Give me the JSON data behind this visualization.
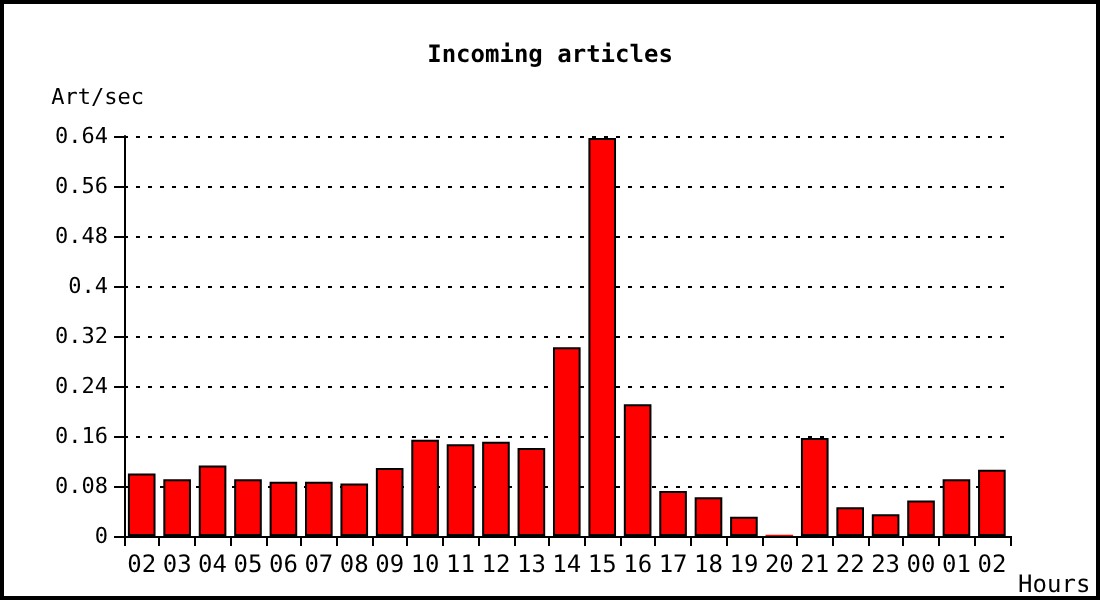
{
  "chart_data": {
    "type": "bar",
    "title": "Incoming articles",
    "ylabel": "Art/sec",
    "xlabel": "Hours",
    "categories": [
      "02",
      "03",
      "04",
      "05",
      "06",
      "07",
      "08",
      "09",
      "10",
      "11",
      "12",
      "13",
      "14",
      "15",
      "16",
      "17",
      "18",
      "19",
      "20",
      "21",
      "22",
      "23",
      "00",
      "01",
      "02"
    ],
    "values": [
      0.1,
      0.091,
      0.113,
      0.091,
      0.087,
      0.087,
      0.084,
      0.109,
      0.154,
      0.147,
      0.151,
      0.141,
      0.302,
      0.637,
      0.211,
      0.072,
      0.062,
      0.031,
      0.002,
      0.157,
      0.046,
      0.035,
      0.057,
      0.091,
      0.106
    ],
    "color": "#ff0000",
    "ylim": [
      0,
      0.64
    ],
    "yticks": [
      0,
      0.08,
      0.16,
      0.24,
      0.32,
      0.4,
      0.48,
      0.56,
      0.64
    ],
    "grid": "y"
  }
}
